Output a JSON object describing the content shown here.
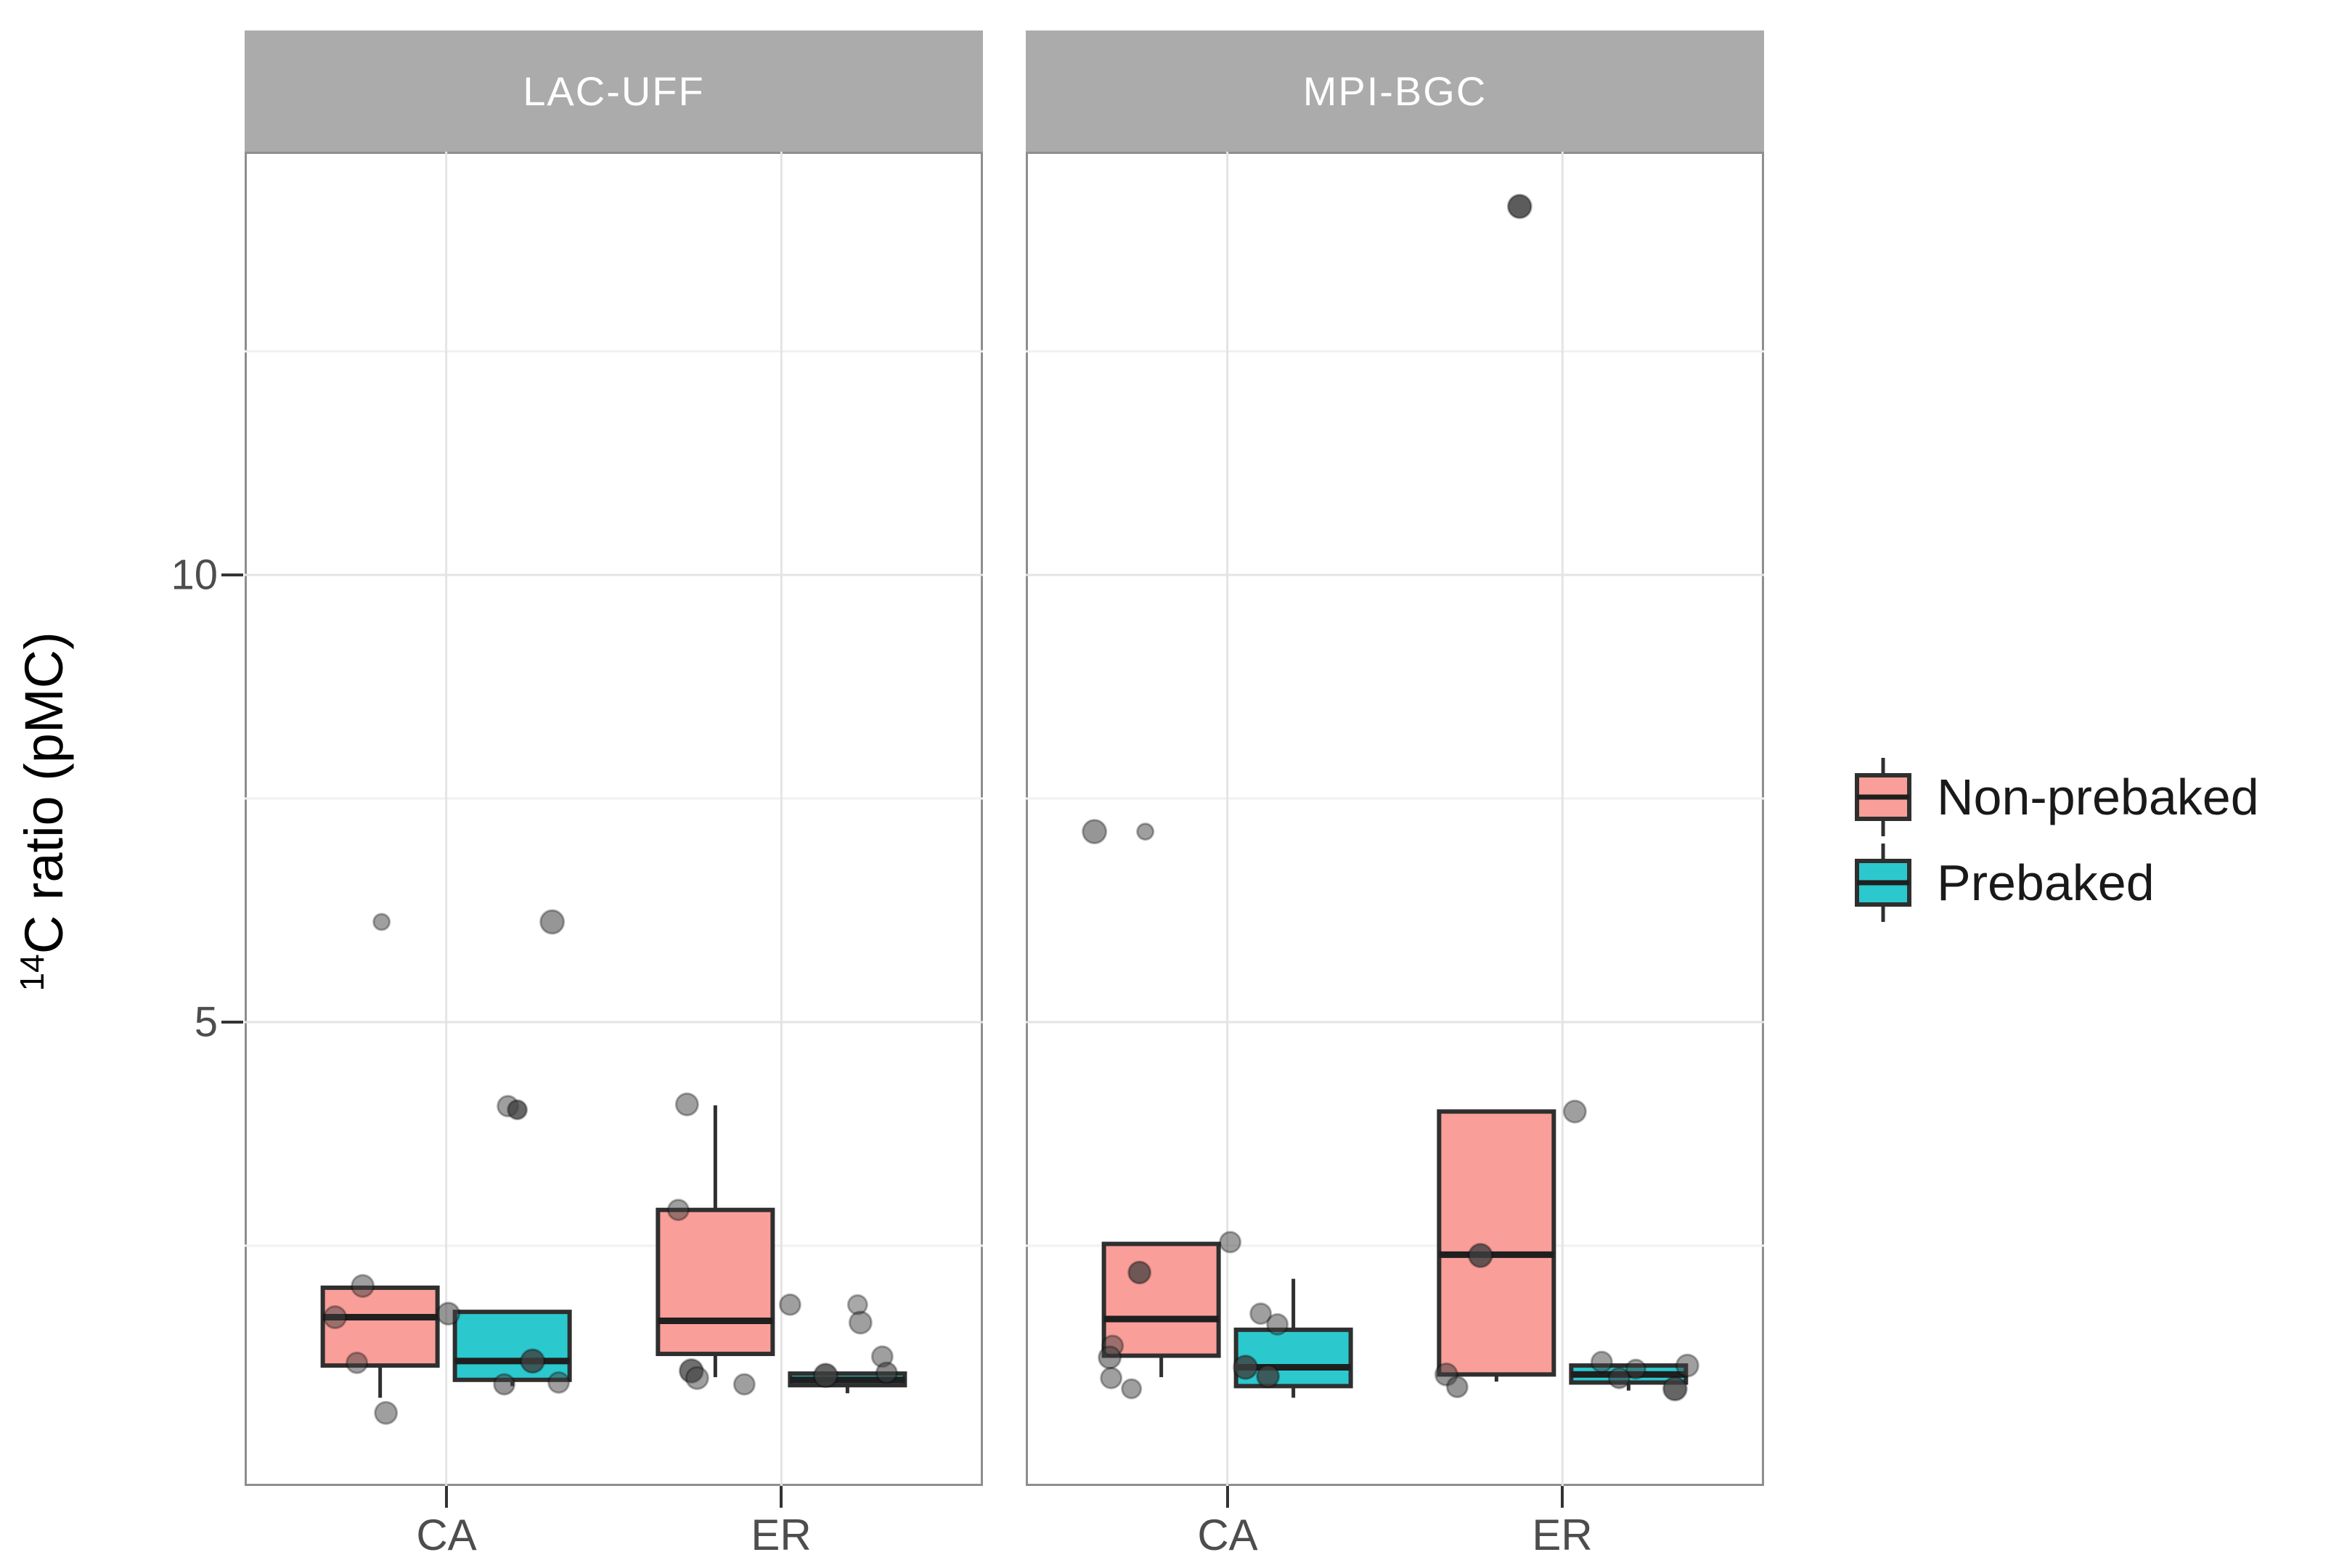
{
  "axis": {
    "y_title_superscript": "14",
    "y_title_rest": "C  ratio (pMC)",
    "y_ticks": [
      {
        "v": 10,
        "label": "10"
      },
      {
        "v": 5,
        "label": "5"
      }
    ],
    "y_minor": [
      2.5,
      7.5,
      12.5
    ]
  },
  "legend": {
    "items": [
      {
        "label": "Non-prebaked",
        "series": "Non-prebaked"
      },
      {
        "label": "Prebaked",
        "series": "Prebaked"
      }
    ]
  },
  "colors": {
    "nonprebaked_fill": "#F99E99",
    "prebaked_fill": "#2BC9CE",
    "box_border": "#2F2F2F",
    "median": "#1F1F1F",
    "point_fill": "#3F3F3F",
    "grid_major": "#E4E4E4",
    "grid_minor": "#F1F1F1",
    "panel_border": "#8E8E8E",
    "strip_bg": "#ABABAB",
    "strip_text": "#FFFFFF",
    "axis_text": "#4D4D4D"
  },
  "chart_data": {
    "type": "boxplot",
    "subtype": "faceted boxplot with jittered points",
    "ylabel": "14C ratio (pMC)",
    "categories": [
      "CA",
      "ER"
    ],
    "series": [
      "Non-prebaked",
      "Prebaked"
    ],
    "y_axis_ticks": [
      5,
      10
    ],
    "y_panel_range": [
      -0.19,
      14.73
    ],
    "facets": [
      {
        "label": "LAC-UFF",
        "boxes": [
          {
            "cat": "CA",
            "series": "Non-prebaked",
            "q1": 1.16,
            "median": 1.7,
            "q3": 2.03,
            "whisker_low": 0.8,
            "whisker_high": 2.03
          },
          {
            "cat": "CA",
            "series": "Prebaked",
            "q1": 1.0,
            "median": 1.21,
            "q3": 1.76,
            "whisker_low": 0.93,
            "whisker_high": 1.76
          },
          {
            "cat": "ER",
            "series": "Non-prebaked",
            "q1": 1.29,
            "median": 1.66,
            "q3": 2.9,
            "whisker_low": 1.03,
            "whisker_high": 4.07
          },
          {
            "cat": "ER",
            "series": "Prebaked",
            "q1": 0.94,
            "median": 1.0,
            "q3": 1.07,
            "whisker_low": 0.85,
            "whisker_high": 1.07
          }
        ],
        "points": [
          {
            "cat": "CA",
            "dx": -115,
            "v": 2.05,
            "r": 15,
            "a": 0.5
          },
          {
            "cat": "CA",
            "dx": -153,
            "v": 1.7,
            "r": 15,
            "a": 0.5
          },
          {
            "cat": "CA",
            "dx": -123,
            "v": 1.19,
            "r": 14,
            "a": 0.5
          },
          {
            "cat": "CA",
            "dx": -83,
            "v": 0.63,
            "r": 15,
            "a": 0.5
          },
          {
            "cat": "CA",
            "dx": -89,
            "v": 6.12,
            "r": 11,
            "a": 0.5
          },
          {
            "cat": "CA",
            "dx": 3,
            "v": 1.74,
            "r": 15,
            "a": 0.55
          },
          {
            "cat": "CA",
            "dx": 85,
            "v": 4.06,
            "r": 14,
            "a": 0.5
          },
          {
            "cat": "CA",
            "dx": 98,
            "v": 4.02,
            "r": 13,
            "a": 0.8
          },
          {
            "cat": "CA",
            "dx": 119,
            "v": 1.21,
            "r": 16,
            "a": 0.8
          },
          {
            "cat": "CA",
            "dx": 80,
            "v": 0.95,
            "r": 14,
            "a": 0.55
          },
          {
            "cat": "CA",
            "dx": 155,
            "v": 0.97,
            "r": 14,
            "a": 0.5
          },
          {
            "cat": "CA",
            "dx": 146,
            "v": 6.12,
            "r": 16,
            "a": 0.55
          },
          {
            "cat": "ER",
            "dx": -130,
            "v": 4.08,
            "r": 15,
            "a": 0.5
          },
          {
            "cat": "ER",
            "dx": -142,
            "v": 2.9,
            "r": 14,
            "a": 0.5
          },
          {
            "cat": "ER",
            "dx": 12,
            "v": 1.84,
            "r": 14,
            "a": 0.5
          },
          {
            "cat": "ER",
            "dx": -124,
            "v": 1.1,
            "r": 16,
            "a": 0.75
          },
          {
            "cat": "ER",
            "dx": -116,
            "v": 1.02,
            "r": 15,
            "a": 0.5
          },
          {
            "cat": "ER",
            "dx": -51,
            "v": 0.95,
            "r": 14,
            "a": 0.5
          },
          {
            "cat": "ER",
            "dx": 61,
            "v": 1.05,
            "r": 16,
            "a": 0.8
          },
          {
            "cat": "ER",
            "dx": 105,
            "v": 1.84,
            "r": 13,
            "a": 0.45
          },
          {
            "cat": "ER",
            "dx": 109,
            "v": 1.64,
            "r": 15,
            "a": 0.5
          },
          {
            "cat": "ER",
            "dx": 139,
            "v": 1.26,
            "r": 14,
            "a": 0.5
          },
          {
            "cat": "ER",
            "dx": 145,
            "v": 1.08,
            "r": 14,
            "a": 0.6
          }
        ]
      },
      {
        "label": "MPI-BGC",
        "boxes": [
          {
            "cat": "CA",
            "series": "Non-prebaked",
            "q1": 1.27,
            "median": 1.68,
            "q3": 2.52,
            "whisker_low": 1.03,
            "whisker_high": 2.52
          },
          {
            "cat": "CA",
            "series": "Prebaked",
            "q1": 0.93,
            "median": 1.14,
            "q3": 1.56,
            "whisker_low": 0.8,
            "whisker_high": 2.13
          },
          {
            "cat": "ER",
            "series": "Non-prebaked",
            "q1": 1.06,
            "median": 2.4,
            "q3": 4.0,
            "whisker_low": 0.98,
            "whisker_high": 4.0
          },
          {
            "cat": "ER",
            "series": "Prebaked",
            "q1": 0.97,
            "median": 1.06,
            "q3": 1.16,
            "whisker_low": 0.88,
            "whisker_high": 1.16
          }
        ],
        "points": [
          {
            "cat": "CA",
            "dx": -183,
            "v": 7.13,
            "r": 16,
            "a": 0.55
          },
          {
            "cat": "CA",
            "dx": -113,
            "v": 7.13,
            "r": 11,
            "a": 0.5
          },
          {
            "cat": "CA",
            "dx": 4,
            "v": 2.54,
            "r": 14,
            "a": 0.5
          },
          {
            "cat": "CA",
            "dx": -121,
            "v": 2.2,
            "r": 15,
            "a": 0.75
          },
          {
            "cat": "CA",
            "dx": -158,
            "v": 1.38,
            "r": 14,
            "a": 0.5
          },
          {
            "cat": "CA",
            "dx": -162,
            "v": 1.25,
            "r": 15,
            "a": 0.55
          },
          {
            "cat": "CA",
            "dx": -160,
            "v": 1.02,
            "r": 14,
            "a": 0.5
          },
          {
            "cat": "CA",
            "dx": -132,
            "v": 0.9,
            "r": 13,
            "a": 0.5
          },
          {
            "cat": "CA",
            "dx": 46,
            "v": 1.74,
            "r": 14,
            "a": 0.5
          },
          {
            "cat": "CA",
            "dx": 69,
            "v": 1.62,
            "r": 14,
            "a": 0.5
          },
          {
            "cat": "CA",
            "dx": 25,
            "v": 1.14,
            "r": 16,
            "a": 0.8
          },
          {
            "cat": "CA",
            "dx": 56,
            "v": 1.04,
            "r": 15,
            "a": 0.8
          },
          {
            "cat": "ER",
            "dx": -59,
            "v": 14.12,
            "r": 16,
            "a": 0.85
          },
          {
            "cat": "ER",
            "dx": 17,
            "v": 4.0,
            "r": 15,
            "a": 0.5
          },
          {
            "cat": "ER",
            "dx": -113,
            "v": 2.39,
            "r": 16,
            "a": 0.8
          },
          {
            "cat": "ER",
            "dx": -160,
            "v": 1.06,
            "r": 15,
            "a": 0.55
          },
          {
            "cat": "ER",
            "dx": -145,
            "v": 0.92,
            "r": 14,
            "a": 0.55
          },
          {
            "cat": "ER",
            "dx": 54,
            "v": 1.2,
            "r": 14,
            "a": 0.5
          },
          {
            "cat": "ER",
            "dx": 101,
            "v": 1.12,
            "r": 13,
            "a": 0.5
          },
          {
            "cat": "ER",
            "dx": 172,
            "v": 1.16,
            "r": 15,
            "a": 0.5
          },
          {
            "cat": "ER",
            "dx": 155,
            "v": 0.9,
            "r": 16,
            "a": 0.8
          },
          {
            "cat": "ER",
            "dx": 78,
            "v": 1.02,
            "r": 14,
            "a": 0.6
          }
        ]
      }
    ]
  }
}
